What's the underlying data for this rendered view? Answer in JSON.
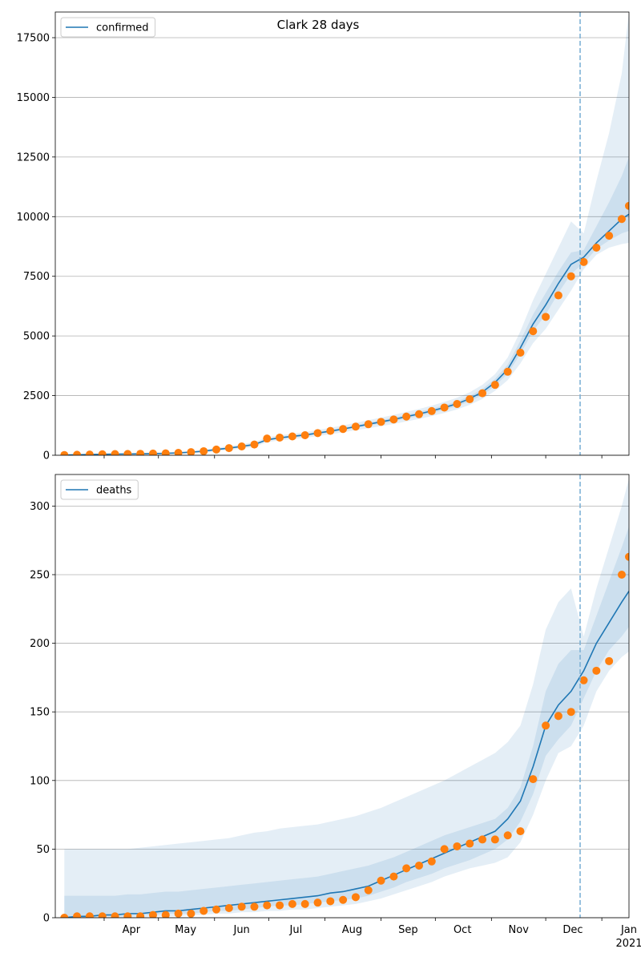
{
  "chart_data": [
    {
      "type": "line",
      "title": "Clark 28 days",
      "legend": "upper left",
      "grid": true,
      "x": [
        "2020-03-10",
        "2020-03-17",
        "2020-03-24",
        "2020-03-31",
        "2020-04-07",
        "2020-04-14",
        "2020-04-21",
        "2020-04-28",
        "2020-05-05",
        "2020-05-12",
        "2020-05-19",
        "2020-05-26",
        "2020-06-02",
        "2020-06-09",
        "2020-06-16",
        "2020-06-23",
        "2020-06-30",
        "2020-07-07",
        "2020-07-14",
        "2020-07-21",
        "2020-07-28",
        "2020-08-04",
        "2020-08-11",
        "2020-08-18",
        "2020-08-25",
        "2020-09-01",
        "2020-09-08",
        "2020-09-15",
        "2020-09-22",
        "2020-09-29",
        "2020-10-06",
        "2020-10-13",
        "2020-10-20",
        "2020-10-27",
        "2020-11-03",
        "2020-11-10",
        "2020-11-17",
        "2020-11-24",
        "2020-12-01",
        "2020-12-08",
        "2020-12-15",
        "2020-12-22",
        "2020-12-29",
        "2021-01-05",
        "2021-01-12",
        "2021-01-16"
      ],
      "xlim": [
        "2020-03-05",
        "2021-01-16"
      ],
      "xticks": [
        "2020-04-01",
        "2020-05-01",
        "2020-06-01",
        "2020-07-01",
        "2020-08-01",
        "2020-09-01",
        "2020-10-01",
        "2020-11-01",
        "2020-12-01",
        "2021-01-01"
      ],
      "ylim": [
        0,
        18575
      ],
      "yticks": [
        0,
        2500,
        5000,
        7500,
        10000,
        12500,
        15000,
        17500
      ],
      "vline": {
        "x": "2020-12-20",
        "color": "#7fb2d6"
      },
      "bands": [
        {
          "color": "#1f77b4",
          "lower": [
            0,
            5,
            10,
            15,
            20,
            25,
            30,
            35,
            40,
            55,
            80,
            110,
            170,
            220,
            280,
            350,
            550,
            620,
            680,
            730,
            800,
            880,
            960,
            1050,
            1130,
            1220,
            1310,
            1420,
            1520,
            1640,
            1770,
            1920,
            2110,
            2360,
            2700,
            3150,
            3850,
            4700,
            5300,
            6100,
            6900,
            7800,
            8400,
            8700,
            8850,
            8900
          ],
          "upper": [
            20,
            35,
            50,
            65,
            80,
            85,
            90,
            105,
            120,
            145,
            180,
            230,
            310,
            380,
            460,
            550,
            750,
            840,
            900,
            970,
            1060,
            1150,
            1250,
            1360,
            1470,
            1580,
            1690,
            1820,
            1940,
            2080,
            2240,
            2410,
            2640,
            2950,
            3400,
            4100,
            5200,
            6500,
            7600,
            8700,
            9800,
            9300,
            11500,
            13500,
            16000,
            18575
          ]
        },
        {
          "color": "#1f77b4",
          "lower": [
            5,
            12,
            20,
            27,
            35,
            40,
            45,
            55,
            62,
            80,
            110,
            145,
            210,
            265,
            330,
            410,
            610,
            690,
            740,
            800,
            880,
            960,
            1040,
            1140,
            1230,
            1330,
            1420,
            1540,
            1640,
            1770,
            1900,
            2060,
            2260,
            2520,
            2900,
            3420,
            4250,
            5200,
            5900,
            6800,
            7600,
            8050,
            8650,
            9000,
            9300,
            9400
          ],
          "upper": [
            15,
            28,
            40,
            53,
            65,
            70,
            75,
            85,
            98,
            120,
            150,
            195,
            270,
            335,
            410,
            490,
            690,
            770,
            840,
            900,
            980,
            1060,
            1160,
            1260,
            1370,
            1470,
            1580,
            1700,
            1820,
            1950,
            2100,
            2260,
            2480,
            2780,
            3200,
            3800,
            4800,
            5900,
            6800,
            7700,
            8500,
            8600,
            9600,
            10600,
            11700,
            12500
          ]
        }
      ],
      "series": [
        {
          "name": "confirmed",
          "color": "#1f77b4",
          "values": [
            10,
            20,
            30,
            40,
            50,
            55,
            60,
            70,
            80,
            100,
            130,
            170,
            240,
            300,
            370,
            450,
            650,
            730,
            790,
            850,
            930,
            1010,
            1100,
            1200,
            1300,
            1400,
            1500,
            1620,
            1730,
            1860,
            2000,
            2160,
            2370,
            2650,
            3050,
            3600,
            4500,
            5500,
            6300,
            7200,
            8000,
            8300,
            8900,
            9400,
            9900,
            10100
          ]
        },
        {
          "color": "#ff7f0e",
          "marker": "o",
          "values": [
            10,
            20,
            30,
            40,
            50,
            55,
            60,
            70,
            80,
            100,
            130,
            170,
            240,
            300,
            370,
            450,
            700,
            740,
            790,
            840,
            930,
            1020,
            1100,
            1200,
            1300,
            1400,
            1500,
            1620,
            1720,
            1850,
            2000,
            2150,
            2350,
            2600,
            2950,
            3500,
            4300,
            5200,
            5800,
            6700,
            7500,
            8100,
            8700,
            9200,
            9900,
            10450
          ]
        }
      ]
    },
    {
      "type": "line",
      "legend": "upper left",
      "grid": true,
      "x": [
        "2020-03-10",
        "2020-03-17",
        "2020-03-24",
        "2020-03-31",
        "2020-04-07",
        "2020-04-14",
        "2020-04-21",
        "2020-04-28",
        "2020-05-05",
        "2020-05-12",
        "2020-05-19",
        "2020-05-26",
        "2020-06-02",
        "2020-06-09",
        "2020-06-16",
        "2020-06-23",
        "2020-06-30",
        "2020-07-07",
        "2020-07-14",
        "2020-07-21",
        "2020-07-28",
        "2020-08-04",
        "2020-08-11",
        "2020-08-18",
        "2020-08-25",
        "2020-09-01",
        "2020-09-08",
        "2020-09-15",
        "2020-09-22",
        "2020-09-29",
        "2020-10-06",
        "2020-10-13",
        "2020-10-20",
        "2020-10-27",
        "2020-11-03",
        "2020-11-10",
        "2020-11-17",
        "2020-11-24",
        "2020-12-01",
        "2020-12-08",
        "2020-12-15",
        "2020-12-22",
        "2020-12-29",
        "2021-01-05",
        "2021-01-12",
        "2021-01-16"
      ],
      "xlim": [
        "2020-03-05",
        "2021-01-16"
      ],
      "xticks": [
        {
          "value": "2020-04-01",
          "label": "Apr"
        },
        {
          "value": "2020-05-01",
          "label": "May"
        },
        {
          "value": "2020-06-01",
          "label": "Jun"
        },
        {
          "value": "2020-07-01",
          "label": "Jul"
        },
        {
          "value": "2020-08-01",
          "label": "Aug"
        },
        {
          "value": "2020-09-01",
          "label": "Sep"
        },
        {
          "value": "2020-10-01",
          "label": "Oct"
        },
        {
          "value": "2020-11-01",
          "label": "Nov"
        },
        {
          "value": "2020-12-01",
          "label": "Dec"
        },
        {
          "value": "2021-01-01",
          "label": "Jan",
          "year": "2021"
        }
      ],
      "ylim": [
        0,
        323
      ],
      "yticks": [
        0,
        50,
        100,
        150,
        200,
        250,
        300
      ],
      "vline": {
        "x": "2020-12-20",
        "color": "#7fb2d6"
      },
      "bands": [
        {
          "color": "#1f77b4",
          "lower": [
            0,
            0,
            0,
            0,
            0,
            0,
            0,
            1,
            1,
            1,
            2,
            2,
            3,
            3,
            4,
            4,
            5,
            5,
            6,
            6,
            7,
            8,
            9,
            10,
            12,
            14,
            17,
            20,
            23,
            26,
            30,
            33,
            36,
            38,
            40,
            44,
            55,
            75,
            100,
            120,
            125,
            140,
            165,
            180,
            190,
            194
          ],
          "upper": [
            50,
            50,
            50,
            50,
            50,
            50,
            51,
            52,
            53,
            54,
            55,
            56,
            57,
            58,
            60,
            62,
            63,
            65,
            66,
            67,
            68,
            70,
            72,
            74,
            77,
            80,
            84,
            88,
            92,
            96,
            100,
            105,
            110,
            115,
            120,
            128,
            140,
            170,
            210,
            230,
            240,
            205,
            240,
            270,
            300,
            320
          ]
        },
        {
          "color": "#1f77b4",
          "lower": [
            0,
            0,
            0,
            1,
            1,
            1,
            2,
            2,
            3,
            3,
            3,
            4,
            5,
            5,
            6,
            7,
            8,
            9,
            9,
            10,
            11,
            12,
            13,
            14,
            16,
            19,
            22,
            26,
            29,
            32,
            36,
            39,
            42,
            46,
            50,
            57,
            70,
            90,
            118,
            130,
            140,
            160,
            180,
            195,
            205,
            212
          ],
          "upper": [
            16,
            16,
            16,
            16,
            16,
            17,
            17,
            18,
            19,
            19,
            20,
            21,
            22,
            23,
            24,
            25,
            26,
            27,
            28,
            29,
            30,
            32,
            34,
            36,
            38,
            41,
            44,
            48,
            52,
            56,
            60,
            63,
            66,
            69,
            72,
            80,
            95,
            125,
            165,
            185,
            195,
            195,
            220,
            245,
            270,
            285
          ]
        }
      ],
      "series": [
        {
          "name": "deaths",
          "color": "#1f77b4",
          "values": [
            0,
            1,
            1,
            2,
            2,
            3,
            3,
            4,
            5,
            5,
            6,
            7,
            8,
            9,
            10,
            11,
            12,
            13,
            14,
            15,
            16,
            18,
            19,
            21,
            23,
            27,
            31,
            35,
            39,
            43,
            47,
            51,
            55,
            59,
            63,
            72,
            85,
            110,
            140,
            155,
            165,
            180,
            200,
            215,
            230,
            238
          ]
        },
        {
          "color": "#ff7f0e",
          "marker": "o",
          "values": [
            0,
            1,
            1,
            1,
            1,
            1,
            1,
            2,
            2,
            3,
            3,
            5,
            6,
            7,
            8,
            8,
            9,
            9,
            10,
            10,
            11,
            12,
            13,
            15,
            20,
            27,
            30,
            36,
            38,
            41,
            50,
            52,
            54,
            57,
            57,
            60,
            63,
            101,
            140,
            147,
            150,
            173,
            180,
            187,
            250,
            263
          ]
        }
      ]
    }
  ]
}
